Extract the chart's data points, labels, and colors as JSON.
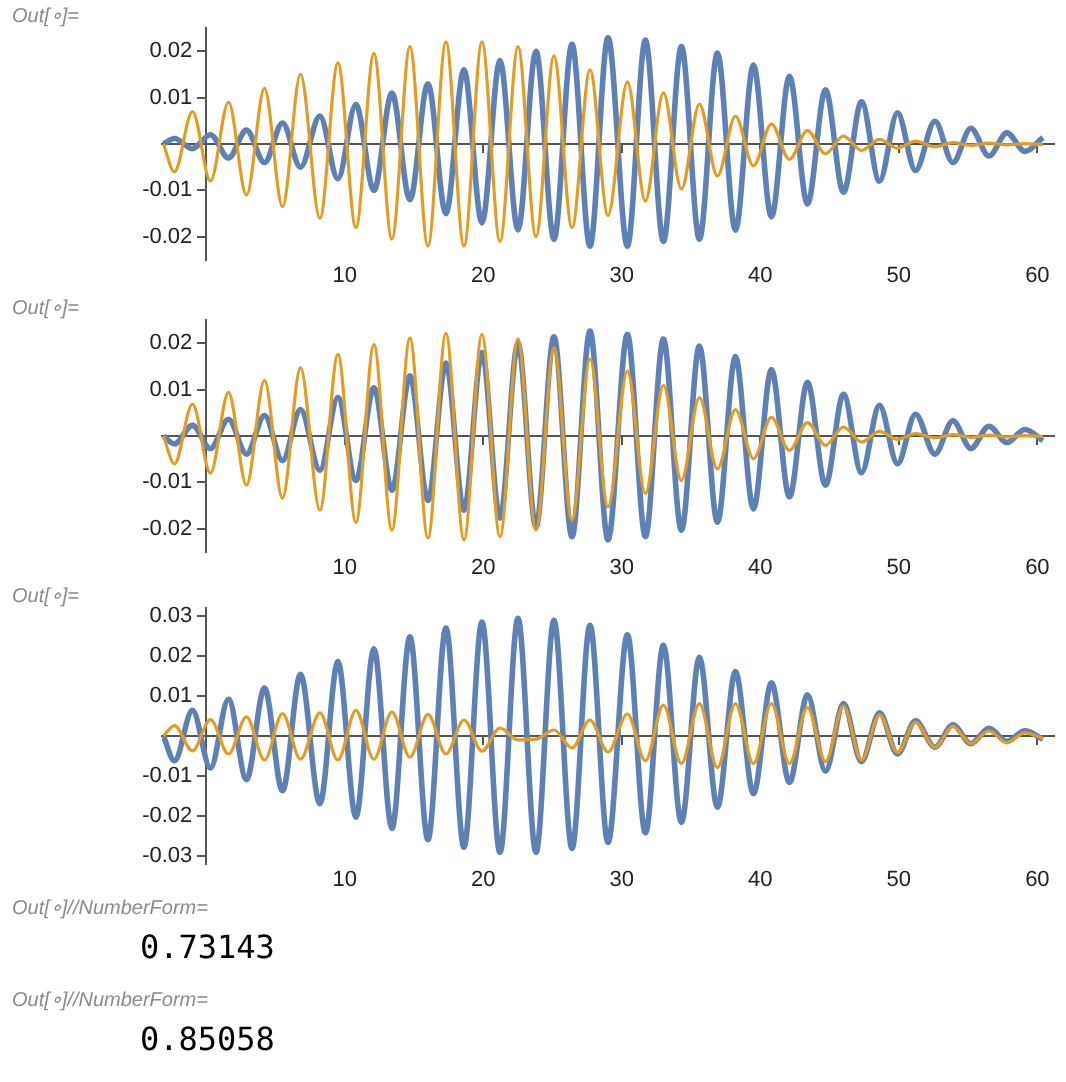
{
  "chart_data": [
    {
      "type": "line",
      "annotations": [
        "Out[∘]="
      ],
      "x": [
        -3.1,
        -2.3,
        -1.0,
        0.3,
        1.6,
        2.9,
        4.2,
        5.5,
        6.8,
        8.2,
        9.5,
        10.8,
        12.1,
        13.4,
        14.7,
        16.0,
        17.3,
        18.6,
        19.9,
        21.2,
        22.5,
        23.8,
        25.1,
        26.4,
        27.7,
        29.0,
        30.4,
        31.7,
        33.0,
        34.3,
        35.6,
        36.9,
        38.2,
        39.5,
        40.8,
        42.1,
        43.4,
        44.7,
        46.0,
        47.3,
        48.6,
        49.9,
        51.2,
        52.6,
        53.9,
        55.2,
        56.5,
        57.8,
        59.1,
        60.4
      ],
      "xlim": [
        -3.2,
        61.2
      ],
      "xticks": [
        10,
        20,
        30,
        40,
        50,
        60
      ],
      "ylim": [
        -0.025,
        0.025
      ],
      "yticks": [
        -0.02,
        -0.01,
        0.01,
        0.02
      ],
      "grid": false,
      "legend": false,
      "marker": "none",
      "line_style": "solid",
      "series": [
        {
          "color": "#5e81b5",
          "values": [
            0,
            0.0012,
            -0.001,
            0.002,
            -0.003,
            0.003,
            -0.004,
            0.0045,
            -0.005,
            0.006,
            -0.0075,
            0.0085,
            -0.01,
            0.011,
            -0.012,
            0.013,
            -0.015,
            0.016,
            -0.017,
            0.018,
            -0.0185,
            0.02,
            -0.0205,
            0.0215,
            -0.022,
            0.0229,
            -0.022,
            0.0224,
            -0.021,
            0.021,
            -0.0205,
            0.0196,
            -0.0186,
            0.017,
            -0.0157,
            0.0146,
            -0.0129,
            0.0117,
            -0.0104,
            0.0091,
            -0.008,
            0.0067,
            -0.0057,
            0.0049,
            -0.004,
            0.0034,
            -0.0026,
            0.0024,
            -0.0016,
            0.0014
          ]
        },
        {
          "color": "#e19c24",
          "values": [
            0,
            -0.006,
            0.007,
            -0.008,
            0.009,
            -0.011,
            0.012,
            -0.0135,
            0.015,
            -0.016,
            0.0175,
            -0.018,
            0.0195,
            -0.0205,
            0.021,
            -0.022,
            0.022,
            -0.022,
            0.022,
            -0.021,
            0.021,
            -0.02,
            0.019,
            -0.018,
            0.016,
            -0.0154,
            0.0134,
            -0.0123,
            0.011,
            -0.0097,
            0.0086,
            -0.0069,
            0.006,
            -0.0047,
            0.0043,
            -0.0033,
            0.0029,
            -0.0021,
            0.0017,
            -0.0014,
            0.001,
            -0.0009,
            0.0006,
            -0.0006,
            0.0003,
            -0.0003,
            0.0002,
            -0.0002,
            0.0001,
            -0.0001
          ]
        }
      ]
    },
    {
      "type": "line",
      "annotations": [
        "Out[∘]="
      ],
      "x": [
        -3.1,
        -2.3,
        -1.0,
        0.3,
        1.6,
        2.9,
        4.2,
        5.5,
        6.8,
        8.2,
        9.5,
        10.8,
        12.1,
        13.4,
        14.7,
        16.0,
        17.3,
        18.6,
        19.9,
        21.2,
        22.5,
        23.8,
        25.1,
        26.4,
        27.7,
        29.0,
        30.4,
        31.7,
        33.0,
        34.3,
        35.6,
        36.9,
        38.2,
        39.5,
        40.8,
        42.1,
        43.4,
        44.7,
        46.0,
        47.3,
        48.6,
        49.9,
        51.2,
        52.6,
        53.9,
        55.2,
        56.5,
        57.8,
        59.1,
        60.4
      ],
      "xlim": [
        -3.2,
        61.2
      ],
      "xticks": [
        10,
        20,
        30,
        40,
        50,
        60
      ],
      "ylim": [
        -0.025,
        0.025
      ],
      "yticks": [
        -0.02,
        -0.01,
        0.01,
        0.02
      ],
      "grid": false,
      "legend": false,
      "marker": "none",
      "line_style": "solid",
      "series": [
        {
          "color": "#5e81b5",
          "values": [
            0,
            -0.0017,
            0.0023,
            -0.0027,
            0.0036,
            -0.0039,
            0.0044,
            -0.0053,
            0.0057,
            -0.0074,
            0.0083,
            -0.0096,
            0.0104,
            -0.0117,
            0.013,
            -0.0139,
            0.0157,
            -0.016,
            0.018,
            -0.0177,
            0.02,
            -0.0196,
            0.0214,
            -0.0217,
            0.0226,
            -0.0224,
            0.0219,
            -0.0217,
            0.0209,
            -0.0203,
            0.0194,
            -0.0186,
            0.0171,
            -0.0157,
            0.0143,
            -0.0131,
            0.0116,
            -0.0106,
            0.009,
            -0.0079,
            0.0066,
            -0.006,
            0.0047,
            -0.0039,
            0.0033,
            -0.0027,
            0.0021,
            -0.0014,
            0.0014,
            -0.001
          ]
        },
        {
          "color": "#e19c24",
          "values": [
            0,
            -0.006,
            0.0069,
            -0.008,
            0.0094,
            -0.0106,
            0.012,
            -0.0134,
            0.0147,
            -0.016,
            0.0176,
            -0.0186,
            0.0197,
            -0.0203,
            0.0211,
            -0.022,
            0.0221,
            -0.0224,
            0.0219,
            -0.0217,
            0.0209,
            -0.0203,
            0.019,
            -0.0181,
            0.0166,
            -0.0153,
            0.014,
            -0.0124,
            0.0109,
            -0.0096,
            0.0083,
            -0.0071,
            0.0057,
            -0.0049,
            0.004,
            -0.0031,
            0.0029,
            -0.002,
            0.0019,
            -0.0013,
            0.001,
            -0.0007,
            0.0005,
            -0.0004,
            0.0003,
            -0.0003,
            0.0002,
            -0.0002,
            0.0001,
            -0.0001
          ]
        }
      ]
    },
    {
      "type": "line",
      "annotations": [
        "Out[∘]="
      ],
      "x": [
        -3.1,
        -2.3,
        -1.0,
        0.3,
        1.6,
        2.9,
        4.2,
        5.5,
        6.8,
        8.2,
        9.5,
        10.8,
        12.1,
        13.4,
        14.7,
        16.0,
        17.3,
        18.6,
        19.9,
        21.2,
        22.5,
        23.8,
        25.1,
        26.4,
        27.7,
        29.0,
        30.4,
        31.7,
        33.0,
        34.3,
        35.6,
        36.9,
        38.2,
        39.5,
        40.8,
        42.1,
        43.4,
        44.7,
        46.0,
        47.3,
        48.6,
        49.9,
        51.2,
        52.6,
        53.9,
        55.2,
        56.5,
        57.8,
        59.1,
        60.4
      ],
      "xlim": [
        -3.2,
        61.2
      ],
      "xticks": [
        10,
        20,
        30,
        40,
        50,
        60
      ],
      "ylim": [
        -0.032,
        0.032
      ],
      "yticks": [
        -0.03,
        -0.02,
        -0.01,
        0.01,
        0.02,
        0.03
      ],
      "grid": false,
      "legend": false,
      "marker": "none",
      "line_style": "solid",
      "series": [
        {
          "color": "#5e81b5",
          "values": [
            0,
            -0.0062,
            0.0064,
            -0.008,
            0.0092,
            -0.0109,
            0.012,
            -0.0137,
            0.0154,
            -0.0169,
            0.0186,
            -0.0203,
            0.0218,
            -0.0231,
            0.0248,
            -0.0259,
            0.027,
            -0.0278,
            0.0285,
            -0.0291,
            0.0294,
            -0.0291,
            0.0289,
            -0.0281,
            0.0277,
            -0.0266,
            0.0253,
            -0.0242,
            0.0227,
            -0.0216,
            0.0197,
            -0.0178,
            0.0161,
            -0.0144,
            0.0133,
            -0.0116,
            0.0103,
            -0.0088,
            0.0081,
            -0.0064,
            0.0058,
            -0.0045,
            0.0038,
            -0.0028,
            0.0028,
            -0.0019,
            0.0019,
            -0.0013,
            0.0013,
            -0.0008
          ]
        },
        {
          "color": "#e19c24",
          "values": [
            0,
            0.0026,
            -0.0037,
            0.0041,
            -0.0045,
            0.0048,
            -0.006,
            0.0056,
            -0.0058,
            0.0058,
            -0.006,
            0.0064,
            -0.0058,
            0.006,
            -0.0053,
            0.0054,
            -0.0045,
            0.004,
            -0.0038,
            0.002,
            -0.001,
            -0.0008,
            0.0015,
            -0.003,
            0.004,
            -0.004,
            0.0055,
            -0.0062,
            0.0077,
            -0.0069,
            0.0081,
            -0.0079,
            0.0081,
            -0.0069,
            0.0081,
            -0.0069,
            0.0071,
            -0.0064,
            0.0075,
            -0.006,
            0.0053,
            -0.0041,
            0.0034,
            -0.0028,
            0.0024,
            -0.0019,
            0.0013,
            -0.0017,
            0.0008,
            -0.0006
          ]
        }
      ]
    },
    {
      "type": "other",
      "annotations": [
        "Out[∘]//NumberForm=",
        "0.73143",
        "Out[∘]//NumberForm=",
        "0.85058"
      ]
    }
  ]
}
